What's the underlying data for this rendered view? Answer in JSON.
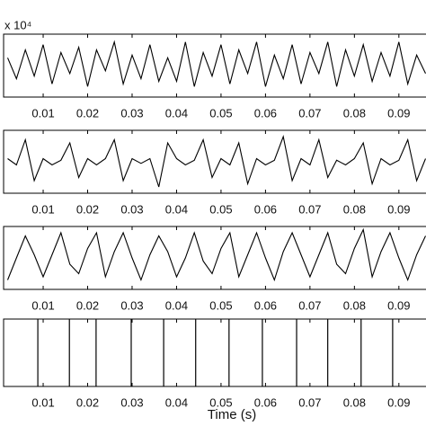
{
  "chart_data": [
    {
      "type": "line",
      "y_exponent_label": "x 10⁴",
      "color": "#000000",
      "x": [
        0.002,
        0.004,
        0.006,
        0.008,
        0.01,
        0.012,
        0.014,
        0.016,
        0.018,
        0.02,
        0.022,
        0.024,
        0.026,
        0.028,
        0.03,
        0.032,
        0.034,
        0.036,
        0.038,
        0.04,
        0.042,
        0.044,
        0.046,
        0.048,
        0.05,
        0.052,
        0.054,
        0.056,
        0.058,
        0.06,
        0.062,
        0.064,
        0.066,
        0.068,
        0.07,
        0.072,
        0.074,
        0.076,
        0.078,
        0.08,
        0.082,
        0.084,
        0.086,
        0.088,
        0.09,
        0.092,
        0.094,
        0.096
      ],
      "values": [
        0.3,
        -0.5,
        0.6,
        -0.4,
        0.8,
        -0.7,
        0.5,
        -0.3,
        0.7,
        -0.8,
        0.6,
        -0.2,
        0.9,
        -0.7,
        0.4,
        -0.5,
        0.8,
        -0.6,
        0.3,
        -0.6,
        0.9,
        -0.8,
        0.5,
        -0.4,
        0.8,
        -0.7,
        0.6,
        -0.3,
        0.9,
        -0.8,
        0.4,
        -0.5,
        0.8,
        -0.7,
        0.5,
        -0.3,
        0.9,
        -0.8,
        0.6,
        -0.4,
        0.8,
        -0.6,
        0.5,
        -0.4,
        0.9,
        -0.7,
        0.4,
        -0.3
      ],
      "xlim": [
        0.0011,
        0.0961
      ],
      "ylim": [
        -1.2,
        1.2
      ],
      "xticks": [
        0.01,
        0.02,
        0.03,
        0.04,
        0.05,
        0.06,
        0.07,
        0.08,
        0.09
      ]
    },
    {
      "type": "line",
      "color": "#000000",
      "x": [
        0.002,
        0.004,
        0.006,
        0.008,
        0.01,
        0.012,
        0.014,
        0.016,
        0.018,
        0.02,
        0.022,
        0.024,
        0.026,
        0.028,
        0.03,
        0.032,
        0.034,
        0.036,
        0.038,
        0.04,
        0.042,
        0.044,
        0.046,
        0.048,
        0.05,
        0.052,
        0.054,
        0.056,
        0.058,
        0.06,
        0.062,
        0.064,
        0.066,
        0.068,
        0.07,
        0.072,
        0.074,
        0.076,
        0.078,
        0.08,
        0.082,
        0.084,
        0.086,
        0.088,
        0.09,
        0.092,
        0.094,
        0.096
      ],
      "values": [
        0.1,
        -0.1,
        0.7,
        -0.6,
        0.1,
        -0.1,
        0.05,
        0.6,
        -0.5,
        0.1,
        -0.1,
        0.1,
        0.7,
        -0.6,
        0.1,
        -0.05,
        0.1,
        -0.8,
        0.6,
        0.1,
        -0.1,
        0.05,
        0.7,
        -0.5,
        0.1,
        -0.1,
        0.6,
        -0.7,
        0.1,
        -0.1,
        0.05,
        0.8,
        -0.6,
        0.1,
        -0.1,
        0.7,
        -0.5,
        0.05,
        -0.1,
        0.1,
        0.6,
        -0.7,
        0.1,
        -0.1,
        0.05,
        0.7,
        -0.6,
        0.1
      ],
      "xlim": [
        0.0011,
        0.0961
      ],
      "ylim": [
        -1,
        1
      ],
      "xticks": [
        0.01,
        0.02,
        0.03,
        0.04,
        0.05,
        0.06,
        0.07,
        0.08,
        0.09
      ]
    },
    {
      "type": "line",
      "color": "#000000",
      "x": [
        0.002,
        0.004,
        0.006,
        0.008,
        0.01,
        0.012,
        0.014,
        0.016,
        0.018,
        0.02,
        0.022,
        0.024,
        0.026,
        0.028,
        0.03,
        0.032,
        0.034,
        0.036,
        0.038,
        0.04,
        0.042,
        0.044,
        0.046,
        0.048,
        0.05,
        0.052,
        0.054,
        0.056,
        0.058,
        0.06,
        0.062,
        0.064,
        0.066,
        0.068,
        0.07,
        0.072,
        0.074,
        0.076,
        0.078,
        0.08,
        0.082,
        0.084,
        0.086,
        0.088,
        0.09,
        0.092,
        0.094,
        0.096
      ],
      "values": [
        -0.7,
        0,
        0.7,
        0.1,
        -0.6,
        0.1,
        0.8,
        -0.2,
        -0.5,
        0.3,
        0.8,
        -0.6,
        0.2,
        0.8,
        0,
        -0.7,
        0.1,
        0.7,
        0.2,
        -0.6,
        0,
        0.8,
        -0.1,
        -0.5,
        0.3,
        0.8,
        -0.6,
        0.1,
        0.8,
        0,
        -0.7,
        0.2,
        0.8,
        0.1,
        -0.6,
        0.1,
        0.8,
        -0.2,
        -0.5,
        0.3,
        0.9,
        -0.6,
        0.2,
        0.8,
        0,
        -0.7,
        0.1,
        0.7
      ],
      "xlim": [
        0.0011,
        0.0961
      ],
      "ylim": [
        -1,
        1
      ],
      "xticks": [
        0.01,
        0.02,
        0.03,
        0.04,
        0.05,
        0.06,
        0.07,
        0.08,
        0.09
      ]
    },
    {
      "type": "stem",
      "color": "#000000",
      "x_label": "Time (s)",
      "x": [
        0.0088,
        0.0159,
        0.0219,
        0.0298,
        0.0371,
        0.0443,
        0.0518,
        0.0593,
        0.067,
        0.074,
        0.0815,
        0.0886
      ],
      "values": [
        1,
        1,
        1,
        1,
        1,
        1,
        1,
        1,
        1,
        1,
        1,
        1
      ],
      "xlim": [
        0.0011,
        0.0961
      ],
      "ylim": [
        0,
        1
      ],
      "xticks": [
        0.01,
        0.02,
        0.03,
        0.04,
        0.05,
        0.06,
        0.07,
        0.08,
        0.09
      ]
    }
  ]
}
